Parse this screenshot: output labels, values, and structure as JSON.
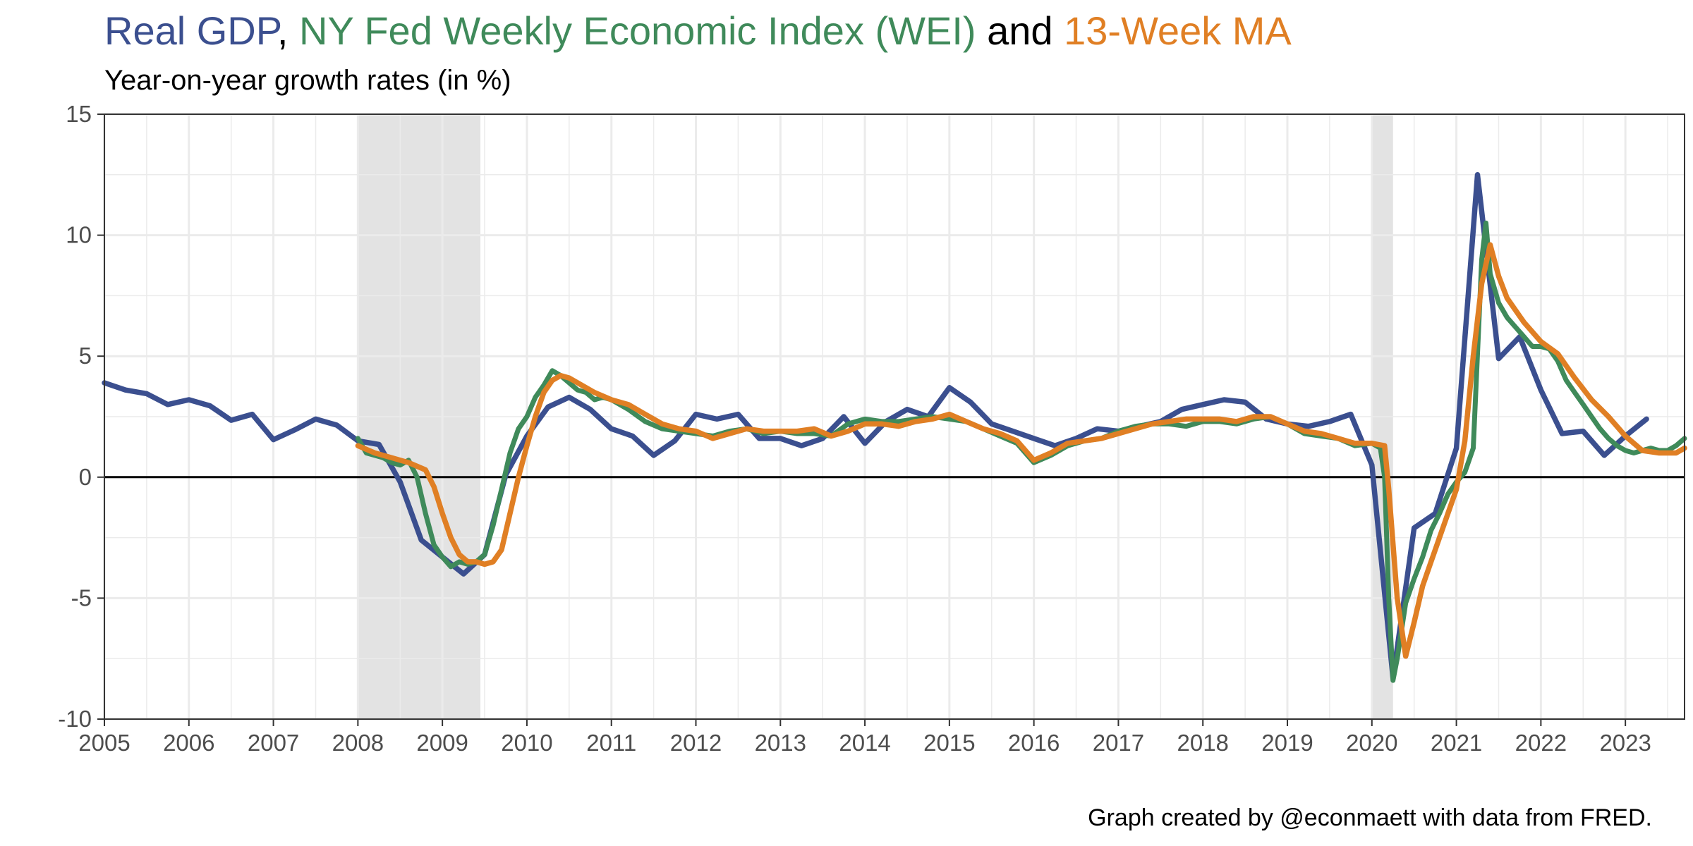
{
  "title": {
    "part1": "Real GDP",
    "sep1": ", ",
    "part2": "NY Fed Weekly Economic Index (WEI)",
    "sep2": " and ",
    "part3": "13-Week MA"
  },
  "subtitle": "Year-on-year growth rates (in %)",
  "caption": "Graph created by @econmaett with data from FRED.",
  "colors": {
    "gdp": "#3b4f8f",
    "wei": "#3f8a5a",
    "ma": "#e07f24",
    "recession": "#e3e3e3",
    "grid": "#ebebeb",
    "zero": "#000000"
  },
  "chart_data": {
    "type": "line",
    "xlim": [
      2005.0,
      2023.7
    ],
    "ylim": [
      -10,
      15
    ],
    "x_ticks": [
      2005,
      2006,
      2007,
      2008,
      2009,
      2010,
      2011,
      2012,
      2013,
      2014,
      2015,
      2016,
      2017,
      2018,
      2019,
      2020,
      2021,
      2022,
      2023
    ],
    "y_ticks": [
      -10,
      -5,
      0,
      5,
      10,
      15
    ],
    "hline": 0,
    "recessions": [
      [
        2008.0,
        2009.45
      ],
      [
        2020.0,
        2020.25
      ]
    ],
    "series": [
      {
        "name": "Real GDP",
        "color": "#3b4f8f",
        "x": [
          2005.0,
          2005.25,
          2005.5,
          2005.75,
          2006.0,
          2006.25,
          2006.5,
          2006.75,
          2007.0,
          2007.25,
          2007.5,
          2007.75,
          2008.0,
          2008.25,
          2008.5,
          2008.75,
          2009.0,
          2009.25,
          2009.5,
          2009.75,
          2010.0,
          2010.25,
          2010.5,
          2010.75,
          2011.0,
          2011.25,
          2011.5,
          2011.75,
          2012.0,
          2012.25,
          2012.5,
          2012.75,
          2013.0,
          2013.25,
          2013.5,
          2013.75,
          2014.0,
          2014.25,
          2014.5,
          2014.75,
          2015.0,
          2015.25,
          2015.5,
          2015.75,
          2016.0,
          2016.25,
          2016.5,
          2016.75,
          2017.0,
          2017.25,
          2017.5,
          2017.75,
          2018.0,
          2018.25,
          2018.5,
          2018.75,
          2019.0,
          2019.25,
          2019.5,
          2019.75,
          2020.0,
          2020.25,
          2020.5,
          2020.75,
          2021.0,
          2021.25,
          2021.5,
          2021.75,
          2022.0,
          2022.25,
          2022.5,
          2022.75,
          2023.0,
          2023.25
        ],
        "y": [
          3.9,
          3.6,
          3.45,
          3.0,
          3.2,
          2.95,
          2.35,
          2.6,
          1.55,
          1.95,
          2.4,
          2.15,
          1.5,
          1.35,
          -0.2,
          -2.6,
          -3.3,
          -4.0,
          -3.2,
          0.1,
          1.7,
          2.9,
          3.3,
          2.8,
          2.0,
          1.7,
          0.9,
          1.5,
          2.6,
          2.4,
          2.6,
          1.6,
          1.6,
          1.3,
          1.6,
          2.5,
          1.4,
          2.3,
          2.8,
          2.5,
          3.7,
          3.1,
          2.2,
          1.9,
          1.6,
          1.3,
          1.6,
          2.0,
          1.9,
          2.1,
          2.3,
          2.8,
          3.0,
          3.2,
          3.1,
          2.4,
          2.2,
          2.1,
          2.3,
          2.6,
          0.5,
          -8.3,
          -2.1,
          -1.5,
          1.2,
          12.5,
          4.9,
          5.8,
          3.6,
          1.8,
          1.9,
          0.9,
          1.7,
          2.4
        ]
      },
      {
        "name": "NY Fed Weekly Economic Index (WEI)",
        "color": "#3f8a5a",
        "x": [
          2008.0,
          2008.1,
          2008.2,
          2008.3,
          2008.4,
          2008.5,
          2008.6,
          2008.7,
          2008.8,
          2008.9,
          2009.0,
          2009.1,
          2009.2,
          2009.3,
          2009.4,
          2009.5,
          2009.6,
          2009.7,
          2009.8,
          2009.9,
          2010.0,
          2010.1,
          2010.2,
          2010.3,
          2010.4,
          2010.5,
          2010.6,
          2010.7,
          2010.8,
          2010.9,
          2011.0,
          2011.1,
          2011.2,
          2011.4,
          2011.6,
          2011.8,
          2012.0,
          2012.2,
          2012.4,
          2012.6,
          2012.8,
          2013.0,
          2013.2,
          2013.4,
          2013.6,
          2013.8,
          2014.0,
          2014.2,
          2014.4,
          2014.6,
          2014.8,
          2015.0,
          2015.2,
          2015.4,
          2015.6,
          2015.8,
          2016.0,
          2016.2,
          2016.4,
          2016.6,
          2016.8,
          2017.0,
          2017.2,
          2017.4,
          2017.6,
          2017.8,
          2018.0,
          2018.2,
          2018.4,
          2018.6,
          2018.8,
          2019.0,
          2019.2,
          2019.4,
          2019.6,
          2019.8,
          2020.0,
          2020.1,
          2020.15,
          2020.2,
          2020.25,
          2020.3,
          2020.4,
          2020.5,
          2020.6,
          2020.7,
          2020.8,
          2020.9,
          2021.0,
          2021.1,
          2021.2,
          2021.3,
          2021.35,
          2021.4,
          2021.5,
          2021.6,
          2021.7,
          2021.8,
          2021.9,
          2022.0,
          2022.1,
          2022.2,
          2022.3,
          2022.4,
          2022.5,
          2022.6,
          2022.7,
          2022.8,
          2022.9,
          2023.0,
          2023.1,
          2023.2,
          2023.3,
          2023.4,
          2023.5,
          2023.6,
          2023.7
        ],
        "y": [
          1.6,
          1.0,
          0.9,
          0.8,
          0.6,
          0.5,
          0.7,
          0.0,
          -1.5,
          -2.8,
          -3.3,
          -3.7,
          -3.5,
          -3.6,
          -3.5,
          -3.2,
          -2.0,
          -0.5,
          1.0,
          2.0,
          2.5,
          3.3,
          3.8,
          4.4,
          4.2,
          3.9,
          3.6,
          3.5,
          3.2,
          3.3,
          3.2,
          3.0,
          2.8,
          2.3,
          2.0,
          1.9,
          1.8,
          1.7,
          1.9,
          2.0,
          1.8,
          1.9,
          1.8,
          1.8,
          1.7,
          2.2,
          2.4,
          2.3,
          2.3,
          2.4,
          2.5,
          2.4,
          2.3,
          2.0,
          1.7,
          1.4,
          0.6,
          0.9,
          1.3,
          1.5,
          1.6,
          1.9,
          2.1,
          2.2,
          2.2,
          2.1,
          2.3,
          2.3,
          2.2,
          2.4,
          2.5,
          2.2,
          1.8,
          1.7,
          1.6,
          1.3,
          1.4,
          1.2,
          0.0,
          -5.0,
          -8.4,
          -7.5,
          -5.2,
          -4.2,
          -3.3,
          -2.2,
          -1.5,
          -0.7,
          -0.2,
          0.2,
          1.2,
          9.0,
          10.5,
          8.4,
          7.2,
          6.6,
          6.2,
          5.8,
          5.4,
          5.4,
          5.3,
          4.8,
          4.0,
          3.5,
          3.0,
          2.5,
          2.0,
          1.6,
          1.3,
          1.1,
          1.0,
          1.1,
          1.2,
          1.1,
          1.1,
          1.3,
          1.6
        ]
      },
      {
        "name": "13-Week MA",
        "color": "#e07f24",
        "x": [
          2008.0,
          2008.2,
          2008.4,
          2008.6,
          2008.8,
          2008.9,
          2009.0,
          2009.1,
          2009.2,
          2009.3,
          2009.4,
          2009.5,
          2009.6,
          2009.7,
          2009.8,
          2009.9,
          2010.0,
          2010.1,
          2010.2,
          2010.3,
          2010.4,
          2010.5,
          2010.6,
          2010.8,
          2011.0,
          2011.2,
          2011.4,
          2011.6,
          2011.8,
          2012.0,
          2012.2,
          2012.4,
          2012.6,
          2012.8,
          2013.0,
          2013.2,
          2013.4,
          2013.6,
          2013.8,
          2014.0,
          2014.2,
          2014.4,
          2014.6,
          2014.8,
          2015.0,
          2015.2,
          2015.4,
          2015.6,
          2015.8,
          2016.0,
          2016.2,
          2016.4,
          2016.6,
          2016.8,
          2017.0,
          2017.2,
          2017.4,
          2017.6,
          2017.8,
          2018.0,
          2018.2,
          2018.4,
          2018.6,
          2018.8,
          2019.0,
          2019.2,
          2019.4,
          2019.6,
          2019.8,
          2020.0,
          2020.15,
          2020.2,
          2020.3,
          2020.4,
          2020.5,
          2020.6,
          2020.7,
          2020.8,
          2020.9,
          2021.0,
          2021.1,
          2021.2,
          2021.3,
          2021.4,
          2021.5,
          2021.6,
          2021.7,
          2021.8,
          2021.9,
          2022.0,
          2022.2,
          2022.4,
          2022.6,
          2022.8,
          2023.0,
          2023.2,
          2023.4,
          2023.6,
          2023.7
        ],
        "y": [
          1.3,
          1.0,
          0.8,
          0.6,
          0.3,
          -0.4,
          -1.5,
          -2.5,
          -3.2,
          -3.5,
          -3.5,
          -3.6,
          -3.5,
          -3.0,
          -1.5,
          0.0,
          1.3,
          2.5,
          3.5,
          4.0,
          4.2,
          4.1,
          3.9,
          3.5,
          3.2,
          3.0,
          2.6,
          2.2,
          2.0,
          1.9,
          1.6,
          1.8,
          2.0,
          1.9,
          1.9,
          1.9,
          2.0,
          1.7,
          1.9,
          2.2,
          2.2,
          2.1,
          2.3,
          2.4,
          2.6,
          2.3,
          2.0,
          1.8,
          1.5,
          0.7,
          1.0,
          1.4,
          1.5,
          1.6,
          1.8,
          2.0,
          2.2,
          2.3,
          2.4,
          2.4,
          2.4,
          2.3,
          2.5,
          2.5,
          2.2,
          1.9,
          1.8,
          1.6,
          1.4,
          1.4,
          1.3,
          -0.5,
          -5.0,
          -7.4,
          -6.0,
          -4.5,
          -3.5,
          -2.5,
          -1.5,
          -0.5,
          1.5,
          5.0,
          8.0,
          9.6,
          8.3,
          7.4,
          6.9,
          6.4,
          6.0,
          5.6,
          5.1,
          4.1,
          3.2,
          2.5,
          1.7,
          1.1,
          1.0,
          1.0,
          1.2
        ]
      }
    ]
  }
}
